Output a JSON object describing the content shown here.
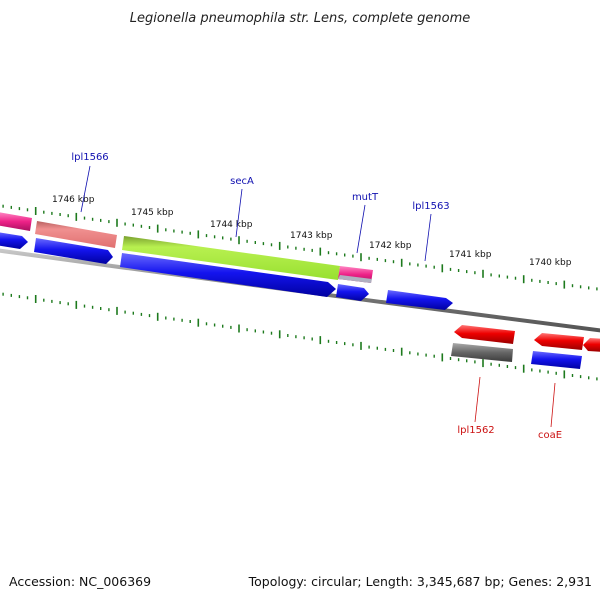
{
  "title": "Legionella pneumophila str. Lens, complete genome",
  "footer": {
    "accession": "Accession: NC_006369",
    "summary": "Topology: circular; Length: 3,345,687 bp; Genes: 2,931"
  },
  "ruler": [
    {
      "label": "1746 kbp"
    },
    {
      "label": "1745 kbp"
    },
    {
      "label": "1744 kbp"
    },
    {
      "label": "1743 kbp"
    },
    {
      "label": "1742 kbp"
    },
    {
      "label": "1741 kbp"
    },
    {
      "label": "1740 kbp"
    }
  ],
  "gene_labels": [
    {
      "name": "lpl1566",
      "strand": "forward"
    },
    {
      "name": "secA",
      "strand": "forward"
    },
    {
      "name": "mutT",
      "strand": "forward"
    },
    {
      "name": "lpl1563",
      "strand": "forward"
    },
    {
      "name": "lpl1562",
      "strand": "reverse"
    },
    {
      "name": "coaE",
      "strand": "reverse"
    }
  ],
  "colors": {
    "forward_label": "#1010b0",
    "reverse_label": "#cc1111",
    "tick": "#1d7a1d",
    "backbone": "#7a7a7a",
    "cds_blue": "#1010e0",
    "cds_red": "#ee1010",
    "cds_grey": "#666666",
    "cds_pink": "#ee3399",
    "cds_salmon": "#ee8080",
    "cds_lime": "#aaee44"
  }
}
